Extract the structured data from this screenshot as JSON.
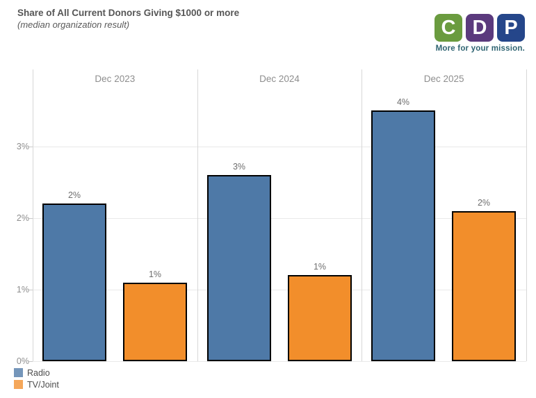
{
  "header": {
    "title": "Share of All Current Donors Giving $1000 or more",
    "subtitle": "(median organization result)"
  },
  "logo": {
    "letters": [
      {
        "char": "C",
        "color": "#6a9b3f"
      },
      {
        "char": "D",
        "color": "#5b3a7d"
      },
      {
        "char": "P",
        "color": "#25468a"
      }
    ],
    "tagline": "More for your mission.",
    "tagline_color": "#2f6472"
  },
  "chart_data": {
    "type": "bar",
    "title": "Share of All Current Donors Giving $1000 or more",
    "subtitle": "(median organization result)",
    "categories": [
      "Dec 2023",
      "Dec 2024",
      "Dec 2025"
    ],
    "series": [
      {
        "name": "Radio",
        "color": "#4e79a7",
        "values": [
          2.2,
          2.6,
          3.5
        ],
        "labels": [
          "2%",
          "3%",
          "4%"
        ]
      },
      {
        "name": "TV/Joint",
        "color": "#f28e2b",
        "values": [
          1.1,
          1.2,
          2.1
        ],
        "labels": [
          "1%",
          "1%",
          "2%"
        ]
      }
    ],
    "xlabel": "",
    "ylabel": "",
    "ylim": [
      0,
      4
    ],
    "yticks": [
      "0%",
      "1%",
      "2%",
      "3%"
    ],
    "grid": true,
    "bar_border_color": "#000000",
    "legend_position": "bottom-left"
  },
  "legend": {
    "items": [
      {
        "label": "Radio",
        "color": "#4e79a7"
      },
      {
        "label": "TV/Joint",
        "color": "#f28e2b"
      }
    ]
  }
}
